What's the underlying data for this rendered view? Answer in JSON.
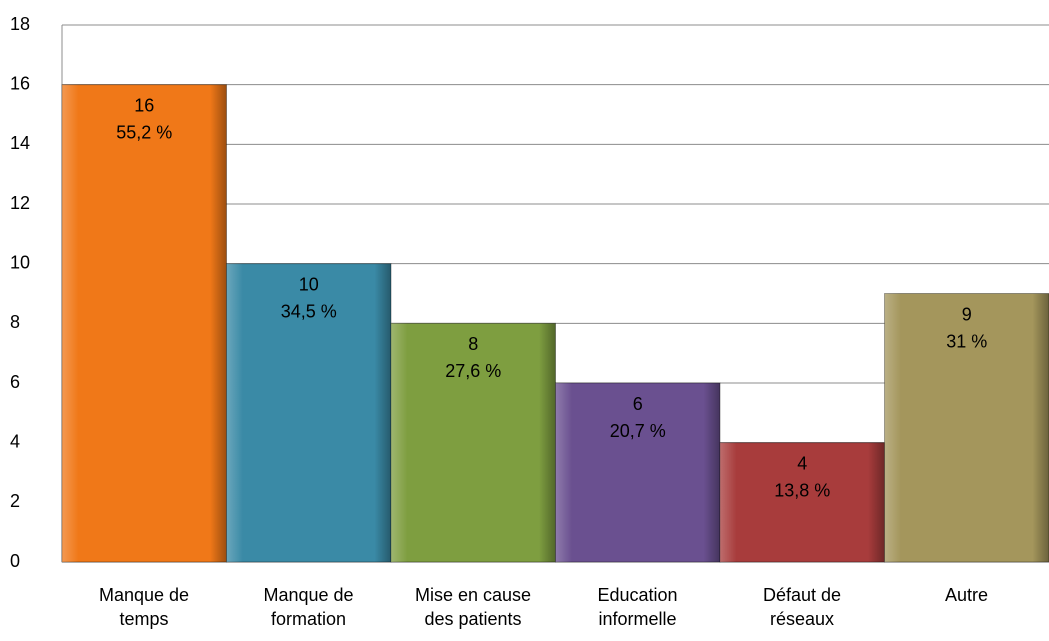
{
  "chart_data": {
    "type": "bar",
    "categories": [
      "Manque de\ntemps",
      "Manque de\nformation",
      "Mise en cause\ndes patients",
      "Education\ninformelle",
      "Défaut de\nréseaux",
      "Autre"
    ],
    "values": [
      16,
      10,
      8,
      6,
      4,
      9
    ],
    "percentages": [
      55.2,
      34.5,
      27.6,
      20.7,
      13.8,
      31
    ],
    "percentage_labels": [
      "55,2 %",
      "34,5 %",
      "27,6 %",
      "20,7 %",
      "13,8 %",
      "31 %"
    ],
    "colors": [
      "#f07818",
      "#3a8aa6",
      "#7e9e40",
      "#6a5090",
      "#a83c3c",
      "#a4965c"
    ],
    "ylim": [
      0,
      18
    ],
    "yticks": [
      0,
      2,
      4,
      6,
      8,
      10,
      12,
      14,
      16,
      18
    ],
    "grid": true
  }
}
